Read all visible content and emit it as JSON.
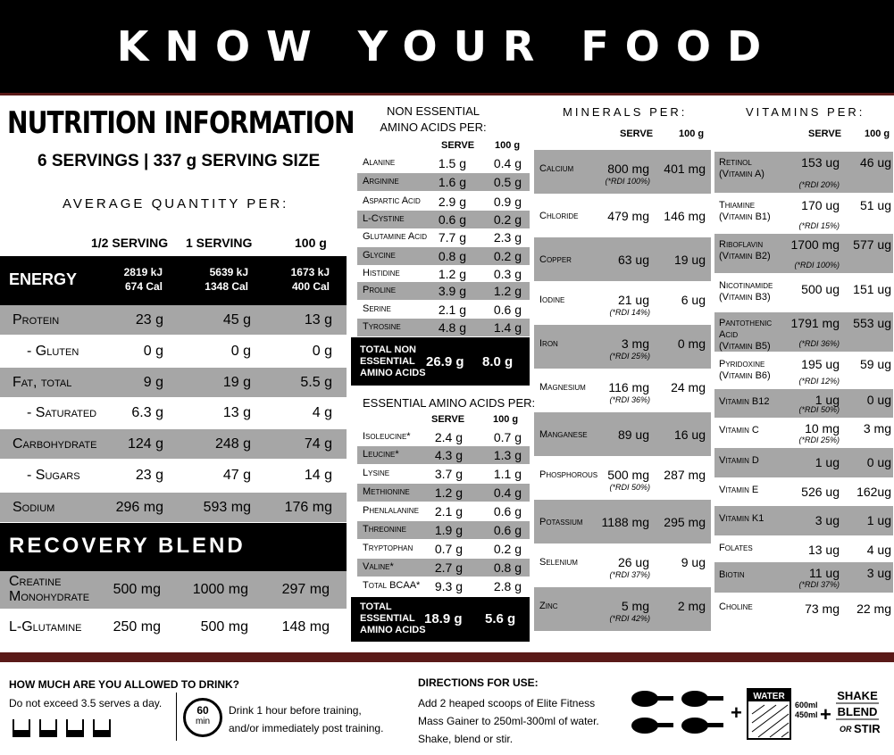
{
  "header": {
    "title": "KNOW YOUR FOOD"
  },
  "nutrition": {
    "title": "NUTRITION INFORMATION",
    "servings": "6 SERVINGS | 337 g SERVING SIZE",
    "avg": "AVERAGE QUANTITY PER:",
    "col1": "1/2 SERVING",
    "col2": "1 SERVING",
    "col3": "100 g",
    "energy": {
      "label": "ENERGY",
      "half_kj": "2819 kJ",
      "half_cal": "674 Cal",
      "one_kj": "5639 kJ",
      "one_cal": "1348 Cal",
      "g_kj": "1673 kJ",
      "g_cal": "400 Cal"
    },
    "rows": [
      {
        "label": "Protein",
        "half": "23 g",
        "one": "45 g",
        "g100": "13 g"
      },
      {
        "label": "- Gluten",
        "half": "0 g",
        "one": "0 g",
        "g100": "0 g"
      },
      {
        "label": "Fat, total",
        "half": "9 g",
        "one": "19 g",
        "g100": "5.5 g"
      },
      {
        "label": "- Saturated",
        "half": "6.3 g",
        "one": "13 g",
        "g100": "4 g"
      },
      {
        "label": "Carbohydrate",
        "half": "124 g",
        "one": "248 g",
        "g100": "74 g"
      },
      {
        "label": "- Sugars",
        "half": "23 g",
        "one": "47 g",
        "g100": "14 g"
      },
      {
        "label": "Sodium",
        "half": "296 mg",
        "one": "593 mg",
        "g100": "176 mg"
      }
    ],
    "recovery_title": "RECOVERY BLEND",
    "recovery": [
      {
        "label1": "Creatine",
        "label2": "Monohydrate",
        "half": "500 mg",
        "one": "1000 mg",
        "g100": "297 mg"
      },
      {
        "label1": "L-Glutamine",
        "label2": "",
        "half": "250 mg",
        "one": "500 mg",
        "g100": "148 mg"
      }
    ]
  },
  "nonessential": {
    "title1": "NON ESSENTIAL",
    "title2": "AMINO ACIDS PER:",
    "serve": "SERVE",
    "g100": "100 g",
    "rows": [
      {
        "label": "Alanine",
        "serve": "1.5 g",
        "g100": "0.4 g"
      },
      {
        "label": "Arginine",
        "serve": "1.6 g",
        "g100": "0.5 g"
      },
      {
        "label": "Aspartic Acid",
        "serve": "2.9 g",
        "g100": "0.9 g"
      },
      {
        "label": "L-Cystine",
        "serve": "0.6 g",
        "g100": "0.2 g"
      },
      {
        "label": "Glutamine Acid",
        "serve": "7.7 g",
        "g100": "2.3 g"
      },
      {
        "label": "Glycine",
        "serve": "0.8 g",
        "g100": "0.2 g"
      },
      {
        "label": "Histidine",
        "serve": "1.2 g",
        "g100": "0.3 g"
      },
      {
        "label": "Proline",
        "serve": "3.9 g",
        "g100": "1.2 g"
      },
      {
        "label": "Serine",
        "serve": "2.1 g",
        "g100": "0.6 g"
      },
      {
        "label": "Tyrosine",
        "serve": "4.8 g",
        "g100": "1.4 g"
      }
    ],
    "total_l1": "TOTAL NON",
    "total_l2": "ESSENTIAL",
    "total_l3": "AMINO ACIDS",
    "total_serve": "26.9 g",
    "total_g100": "8.0 g"
  },
  "essential": {
    "title": "ESSENTIAL AMINO ACIDS PER:",
    "serve": "SERVE",
    "g100": "100 g",
    "rows": [
      {
        "label": "Isoleucine*",
        "serve": "2.4 g",
        "g100": "0.7 g"
      },
      {
        "label": "Leucine*",
        "serve": "4.3 g",
        "g100": "1.3 g"
      },
      {
        "label": "Lysine",
        "serve": "3.7 g",
        "g100": "1.1 g"
      },
      {
        "label": "Methionine",
        "serve": "1.2 g",
        "g100": "0.4 g"
      },
      {
        "label": "Phenlalanine",
        "serve": "2.1 g",
        "g100": "0.6 g"
      },
      {
        "label": "Threonine",
        "serve": "1.9 g",
        "g100": "0.6 g"
      },
      {
        "label": "Tryptophan",
        "serve": "0.7 g",
        "g100": "0.2 g"
      },
      {
        "label": "Valine*",
        "serve": "2.7 g",
        "g100": "0.8 g"
      },
      {
        "label": "Total BCAA*",
        "serve": "9.3 g",
        "g100": "2.8 g"
      }
    ],
    "total_l1": "TOTAL",
    "total_l2": "ESSENTIAL",
    "total_l3": "AMINO ACIDS",
    "total_serve": "18.9 g",
    "total_g100": "5.6 g"
  },
  "minerals": {
    "title": "MINERALS PER:",
    "serve": "SERVE",
    "g100": "100 g",
    "rows": [
      {
        "label": "Calcium",
        "serve": "800 mg",
        "g100": "401 mg",
        "rdi": "(*RDI 100%)"
      },
      {
        "label": "Chloride",
        "serve": "479 mg",
        "g100": "146 mg",
        "rdi": ""
      },
      {
        "label": "Copper",
        "serve": "63 ug",
        "g100": "19 ug",
        "rdi": ""
      },
      {
        "label": "Iodine",
        "serve": "21 ug",
        "g100": "6 ug",
        "rdi": "(*RDI 14%)"
      },
      {
        "label": "Iron",
        "serve": "3 mg",
        "g100": "0 mg",
        "rdi": "(*RDI 25%)"
      },
      {
        "label": "Magnesium",
        "serve": "116 mg",
        "g100": "24 mg",
        "rdi": "(*RDI 36%)"
      },
      {
        "label": "Manganese",
        "serve": "89 ug",
        "g100": "16 ug",
        "rdi": ""
      },
      {
        "label": "Phosphorous",
        "serve": "500 mg",
        "g100": "287 mg",
        "rdi": "(*RDI 50%)"
      },
      {
        "label": "Potassium",
        "serve": "1188 mg",
        "g100": "295 mg",
        "rdi": ""
      },
      {
        "label": "Selenium",
        "serve": "26 ug",
        "g100": "9 ug",
        "rdi": "(*RDI 37%)"
      },
      {
        "label": "Zinc",
        "serve": "5 mg",
        "g100": "2 mg",
        "rdi": "(*RDI 42%)"
      }
    ]
  },
  "vitamins": {
    "title": "VITAMINS PER:",
    "serve": "SERVE",
    "g100": "100 g",
    "rows": [
      {
        "l1": "Retinol",
        "l2": "(Vitamin A)",
        "l3": "",
        "serve": "153 ug",
        "g100": "46 ug",
        "rdi": "(*RDI 20%)"
      },
      {
        "l1": "Thiamine",
        "l2": "(Vitamin B1)",
        "l3": "",
        "serve": "170 ug",
        "g100": "51 ug",
        "rdi": "(*RDI 15%)"
      },
      {
        "l1": "Riboflavin",
        "l2": "(Vitamin B2)",
        "l3": "",
        "serve": "1700 mg",
        "g100": "577 ug",
        "rdi": "(*RDI 100%)"
      },
      {
        "l1": "Nicotinamide",
        "l2": "(Vitamin B3)",
        "l3": "",
        "serve": "500 ug",
        "g100": "151 ug",
        "rdi": ""
      },
      {
        "l1": "Pantothenic",
        "l2": "Acid",
        "l3": "(Vitamin B5)",
        "serve": "1791 mg",
        "g100": "553 ug",
        "rdi": "(*RDI 36%)"
      },
      {
        "l1": "Pyridoxine",
        "l2": "(Vitamin B6)",
        "l3": "",
        "serve": "195 ug",
        "g100": "59 ug",
        "rdi": "(*RDI 12%)"
      },
      {
        "l1": "Vitamin B12",
        "l2": "",
        "l3": "",
        "serve": "1 ug",
        "g100": "0 ug",
        "rdi": "(*RDI 50%)"
      },
      {
        "l1": "Vitamin C",
        "l2": "",
        "l3": "",
        "serve": "10 mg",
        "g100": "3 mg",
        "rdi": "(*RDI 25%)"
      },
      {
        "l1": "Vitamin D",
        "l2": "",
        "l3": "",
        "serve": "1 ug",
        "g100": "0 ug",
        "rdi": ""
      },
      {
        "l1": "Vitamin E",
        "l2": "",
        "l3": "",
        "serve": "526 ug",
        "g100": "162ug",
        "rdi": ""
      },
      {
        "l1": "Vitamin K1",
        "l2": "",
        "l3": "",
        "serve": "3 ug",
        "g100": "1 ug",
        "rdi": ""
      },
      {
        "l1": "Folates",
        "l2": "",
        "l3": "",
        "serve": "13 ug",
        "g100": "4 ug",
        "rdi": ""
      },
      {
        "l1": "Biotin",
        "l2": "",
        "l3": "",
        "serve": "11 ug",
        "g100": "3 ug",
        "rdi": "(*RDI 37%)"
      },
      {
        "l1": "Choline",
        "l2": "",
        "l3": "",
        "serve": "73 mg",
        "g100": "22 mg",
        "rdi": ""
      }
    ]
  },
  "footer": {
    "drink_title": "HOW MUCH ARE YOU ALLOWED TO DRINK?",
    "drink_text": "Do not exceed 3.5 serves a day.",
    "timer_num": "60",
    "timer_unit": "min",
    "timer_l1": "Drink 1 hour before training,",
    "timer_l2": "and/or immediately post training.",
    "dir_title": "DIRECTIONS FOR USE:",
    "dir_l1": "Add 2 heaped scoops of Elite Fitness",
    "dir_l2": "Mass Gainer to 250ml-300ml of water.",
    "dir_l3": "Shake, blend or stir.",
    "water": "WATER",
    "ml600": "600ml",
    "ml450": "450ml",
    "shake": "SHAKE",
    "blend": "BLEND",
    "or": "OR",
    "stir": "STIR"
  }
}
